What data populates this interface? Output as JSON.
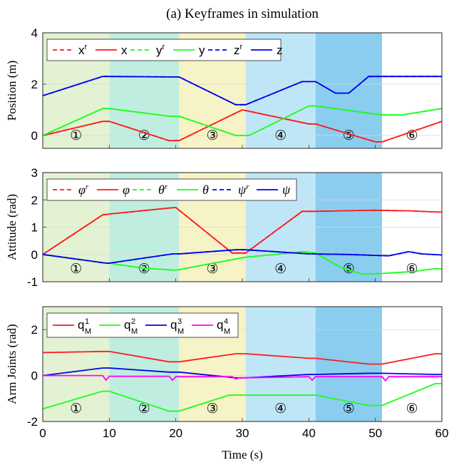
{
  "figure_title": "(a) Keyframes in simulation",
  "keyframe_labels": [
    "①",
    "②",
    "③",
    "④",
    "⑤",
    "⑥"
  ],
  "chart_data": [
    {
      "type": "line",
      "ylabel": "Position (m)",
      "xlim": [
        0,
        60
      ],
      "ylim": [
        -0.5,
        4
      ],
      "yticks": [
        "0",
        "2",
        "4"
      ],
      "xticks": [],
      "grid": true,
      "legend_position": "top",
      "keyframe_bands": [
        {
          "start": 0,
          "end": 10,
          "color": "#e3f2d3"
        },
        {
          "start": 10,
          "end": 20.5,
          "color": "#bfeee0"
        },
        {
          "start": 20.5,
          "end": 30.5,
          "color": "#f6f3c6"
        },
        {
          "start": 30.5,
          "end": 41,
          "color": "#bfe6f7"
        },
        {
          "start": 41,
          "end": 51,
          "color": "#8bcdef"
        },
        {
          "start": 51,
          "end": 60,
          "color": "#ffffff"
        }
      ],
      "series": [
        {
          "name": "x",
          "ref_name": "x",
          "color": "#ff1a1a",
          "x": [
            0,
            9,
            10,
            19,
            20.5,
            30,
            40,
            41,
            50,
            51,
            60
          ],
          "values": [
            0,
            0.55,
            0.55,
            -0.2,
            -0.2,
            1.0,
            0.45,
            0.45,
            -0.25,
            -0.25,
            0.55
          ]
        },
        {
          "name": "y",
          "ref_name": "y",
          "color": "#1aff1a",
          "x": [
            0,
            9,
            10,
            19,
            20.5,
            29,
            31,
            40,
            41,
            51,
            54,
            60
          ],
          "values": [
            0,
            1.05,
            1.05,
            0.75,
            0.75,
            0,
            0,
            1.15,
            1.15,
            0.8,
            0.8,
            1.05
          ]
        },
        {
          "name": "z",
          "ref_name": "z",
          "color": "#0000ee",
          "x": [
            0,
            9,
            10,
            19,
            20.5,
            29,
            30.5,
            39,
            41,
            44,
            46,
            49,
            51,
            60
          ],
          "values": [
            1.55,
            2.3,
            2.3,
            2.28,
            2.28,
            1.2,
            1.2,
            2.1,
            2.1,
            1.65,
            1.65,
            2.3,
            2.3,
            2.3
          ]
        }
      ]
    },
    {
      "type": "line",
      "ylabel": "Attitude (rad)",
      "xlim": [
        0,
        60
      ],
      "ylim": [
        -1,
        3
      ],
      "yticks": [
        "-1",
        "0",
        "1",
        "2",
        "3"
      ],
      "xticks": [],
      "grid": true,
      "legend_position": "top",
      "keyframe_bands": [
        {
          "start": 0,
          "end": 10,
          "color": "#e3f2d3"
        },
        {
          "start": 10,
          "end": 20.5,
          "color": "#bfeee0"
        },
        {
          "start": 20.5,
          "end": 30.5,
          "color": "#f6f3c6"
        },
        {
          "start": 30.5,
          "end": 41,
          "color": "#bfe6f7"
        },
        {
          "start": 41,
          "end": 51,
          "color": "#8bcdef"
        },
        {
          "start": 51,
          "end": 60,
          "color": "#ffffff"
        }
      ],
      "series": [
        {
          "name": "φ",
          "ref_name": "φ",
          "color": "#ff1a1a",
          "x": [
            0,
            9,
            10,
            19,
            20,
            28.5,
            30.5,
            39,
            41,
            45,
            50,
            55,
            60
          ],
          "values": [
            0,
            1.45,
            1.48,
            1.7,
            1.72,
            0.05,
            0.05,
            1.58,
            1.58,
            1.6,
            1.62,
            1.6,
            1.55
          ]
        },
        {
          "name": "θ",
          "ref_name": "θ",
          "color": "#1aff1a",
          "x": [
            0,
            9,
            10,
            15,
            20,
            25,
            30.5,
            35,
            39,
            41,
            45,
            48,
            51,
            56,
            59,
            60
          ],
          "values": [
            0,
            -0.3,
            -0.32,
            -0.5,
            -0.58,
            -0.35,
            -0.1,
            0,
            0.1,
            0.05,
            -0.5,
            -0.72,
            -0.7,
            -0.62,
            -0.52,
            -0.53
          ]
        },
        {
          "name": "ψ",
          "ref_name": "ψ",
          "color": "#0000ee",
          "x": [
            0,
            9.5,
            10,
            19.5,
            20.5,
            29,
            30.5,
            40,
            46,
            52,
            55,
            57,
            60
          ],
          "values": [
            0,
            -0.32,
            -0.32,
            0.02,
            0.02,
            0.17,
            0.17,
            0.02,
            0.0,
            -0.05,
            0.1,
            0.02,
            -0.02
          ]
        }
      ]
    },
    {
      "type": "line",
      "ylabel": "Arm Joints (rad)",
      "xlabel": "Time (s)",
      "xlim": [
        0,
        60
      ],
      "ylim": [
        -2,
        3
      ],
      "yticks": [
        "-2",
        "0",
        "2"
      ],
      "xticks": [
        "0",
        "10",
        "20",
        "30",
        "40",
        "50",
        "60"
      ],
      "grid": true,
      "legend_position": "top",
      "keyframe_bands": [
        {
          "start": 0,
          "end": 10,
          "color": "#e3f2d3"
        },
        {
          "start": 10,
          "end": 20.5,
          "color": "#bfeee0"
        },
        {
          "start": 20.5,
          "end": 30.5,
          "color": "#f6f3c6"
        },
        {
          "start": 30.5,
          "end": 41,
          "color": "#bfe6f7"
        },
        {
          "start": 41,
          "end": 51,
          "color": "#8bcdef"
        },
        {
          "start": 51,
          "end": 60,
          "color": "#ffffff"
        }
      ],
      "series": [
        {
          "name": "q",
          "sub": "M",
          "sup": "1",
          "color": "#ff1a1a",
          "x": [
            0,
            9,
            10,
            19,
            20.5,
            29,
            30.5,
            40,
            41,
            49,
            51,
            59,
            60
          ],
          "values": [
            1.0,
            1.05,
            1.05,
            0.6,
            0.6,
            0.95,
            0.95,
            0.75,
            0.75,
            0.5,
            0.5,
            0.95,
            0.95
          ]
        },
        {
          "name": "q",
          "sub": "M",
          "sup": "2",
          "color": "#1aff1a",
          "x": [
            0,
            9,
            10,
            19,
            20.5,
            28,
            30.5,
            40,
            41,
            49,
            51,
            59,
            60
          ],
          "values": [
            -1.45,
            -0.68,
            -0.68,
            -1.55,
            -1.55,
            -0.85,
            -0.85,
            -0.85,
            -0.85,
            -1.3,
            -1.3,
            -0.35,
            -0.35
          ]
        },
        {
          "name": "q",
          "sub": "M",
          "sup": "3",
          "color": "#0000ee",
          "x": [
            0,
            9,
            10,
            19,
            20.5,
            29,
            30.5,
            40,
            41,
            49,
            51,
            59,
            60
          ],
          "values": [
            0.0,
            0.33,
            0.33,
            0.15,
            0.15,
            -0.1,
            -0.1,
            0.05,
            0.05,
            0.1,
            0.1,
            0.05,
            0.05
          ]
        },
        {
          "name": "q",
          "sub": "M",
          "sup": "4",
          "color": "#ff00ff",
          "x": [
            0,
            9,
            9.5,
            10,
            19,
            19.5,
            20,
            28.5,
            29,
            29.5,
            30,
            40,
            40.5,
            41,
            51,
            51.5,
            52,
            60
          ],
          "values": [
            0.0,
            0.0,
            -0.2,
            -0.03,
            -0.03,
            -0.2,
            -0.05,
            -0.05,
            -0.15,
            -0.1,
            -0.1,
            -0.05,
            -0.2,
            -0.05,
            -0.05,
            -0.22,
            -0.05,
            -0.05
          ]
        }
      ]
    }
  ]
}
